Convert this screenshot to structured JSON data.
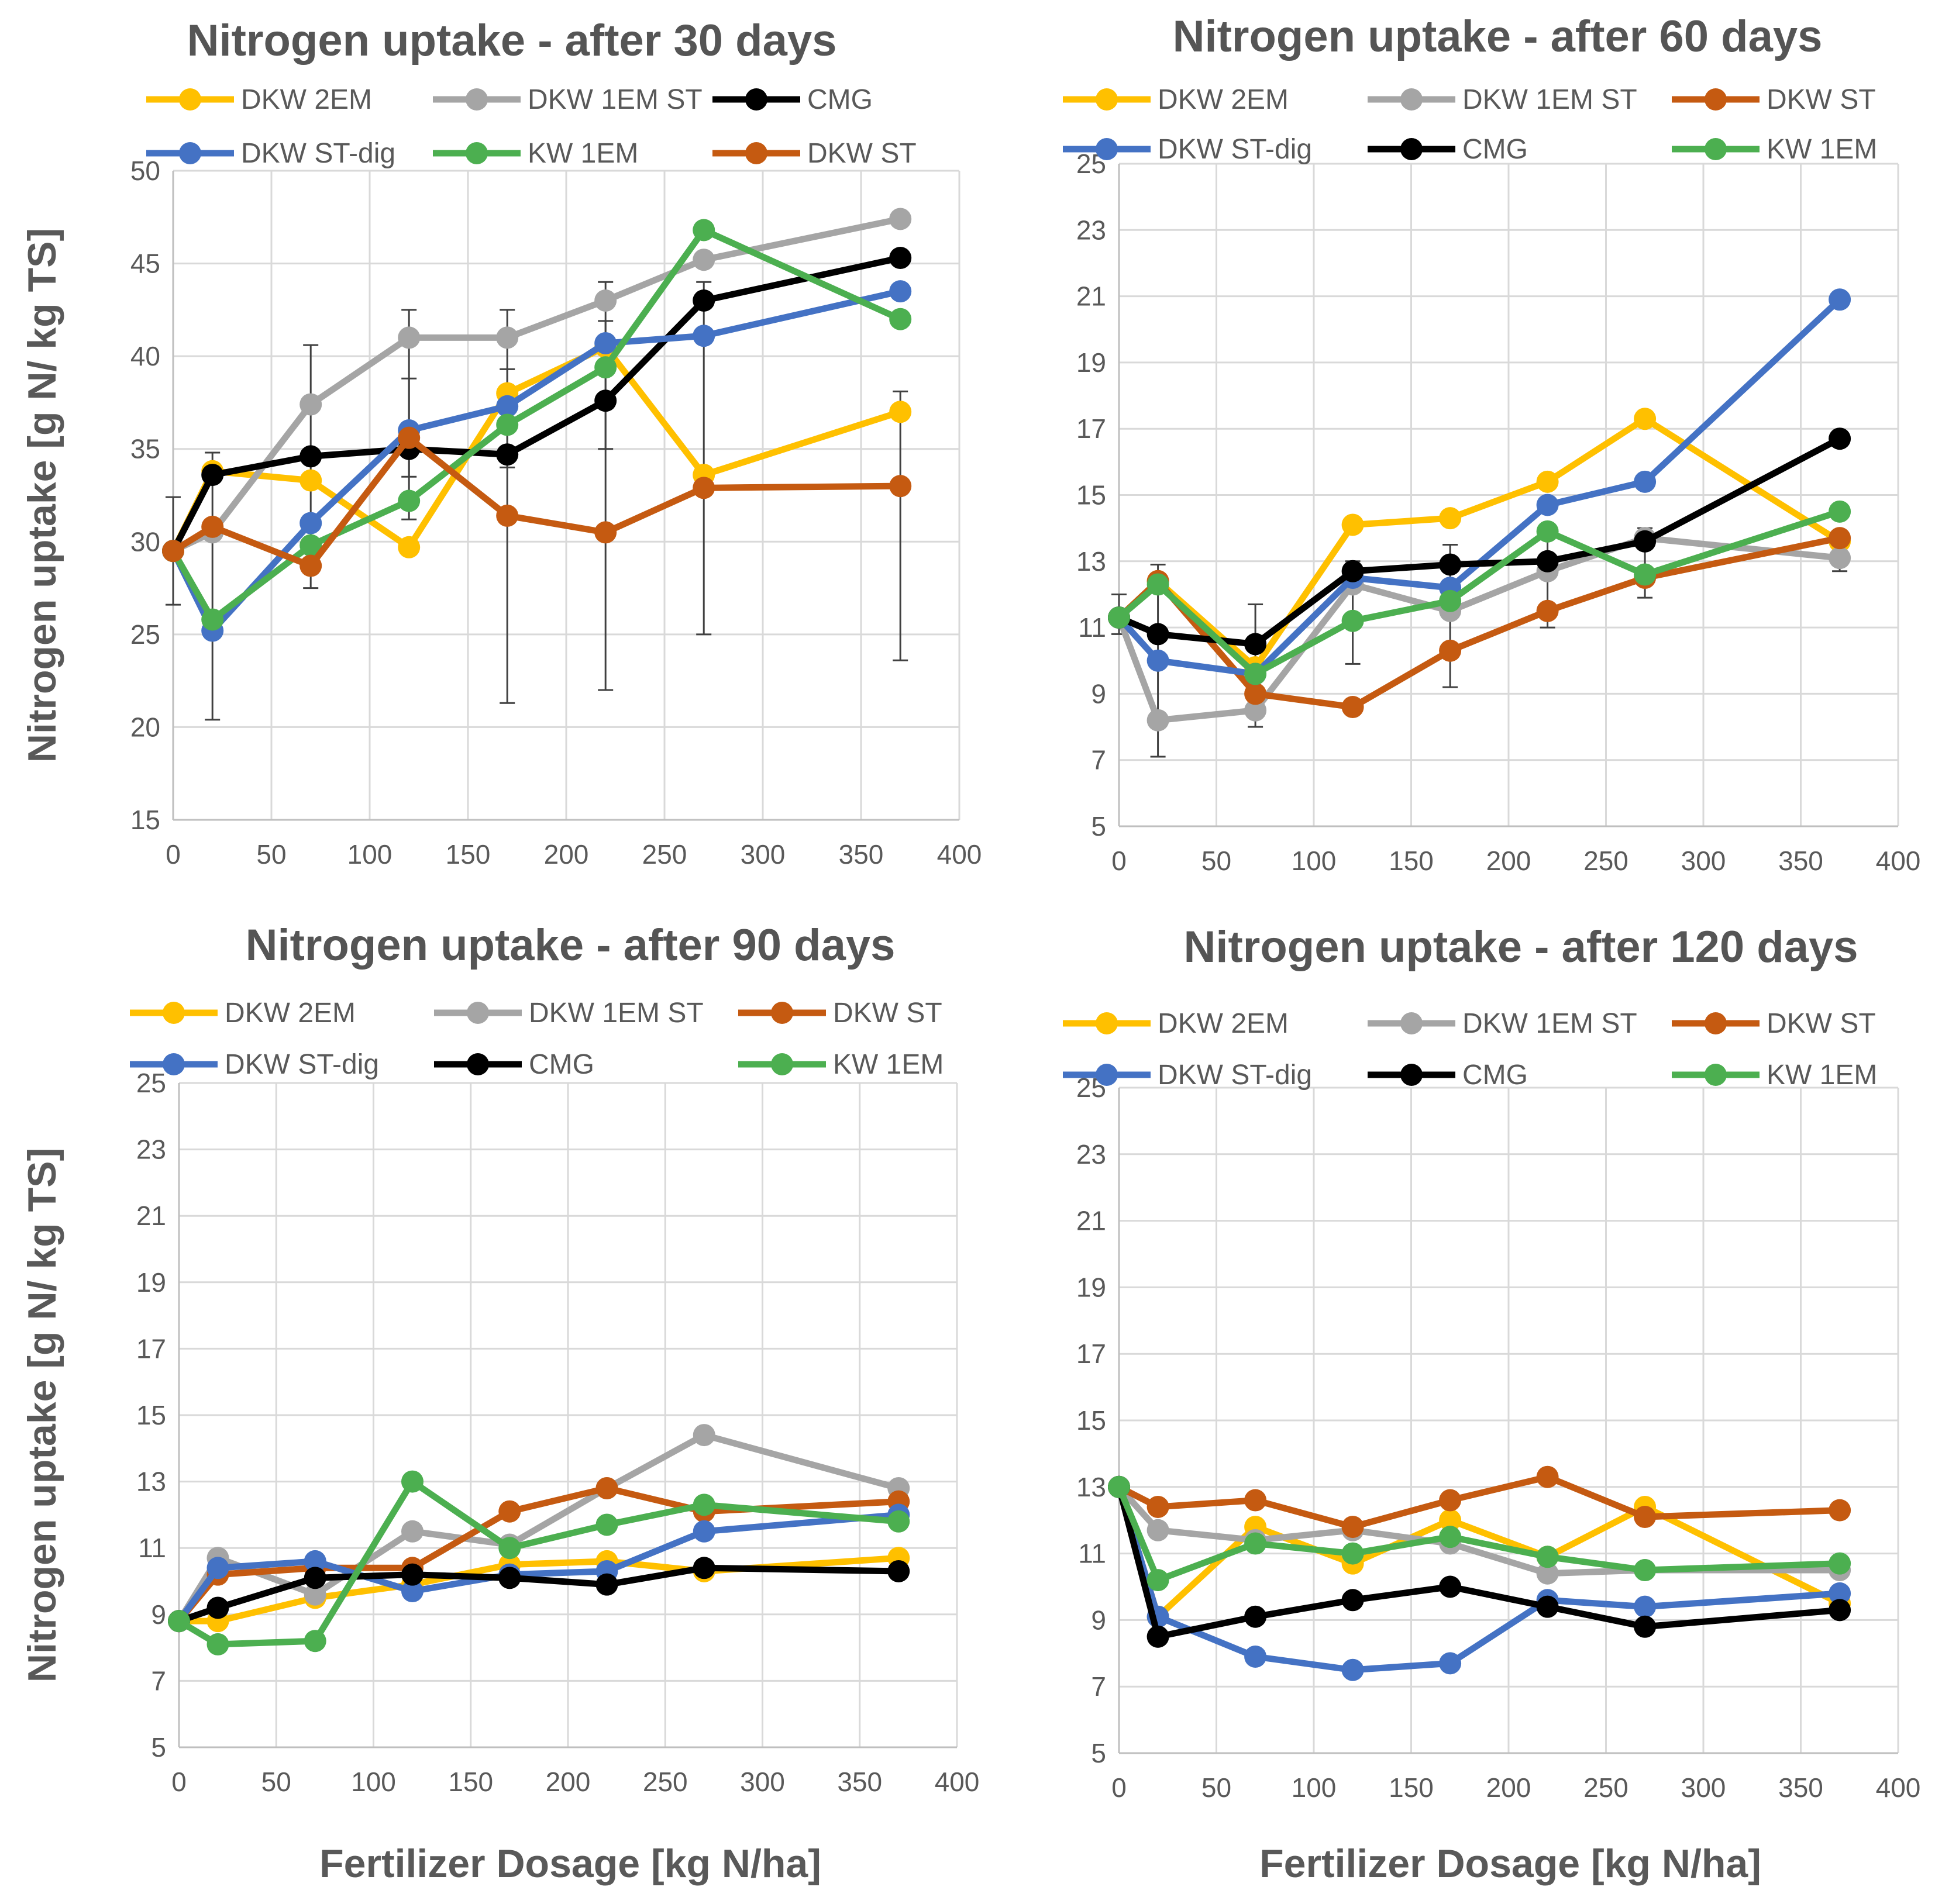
{
  "figure": {
    "xlabel_left": "Fertilizer Dosage [kg N/ha]",
    "xlabel_right": "Fertilizer Dosage [kg N/ha]"
  },
  "colors": {
    "DKW 2EM": "#FFC000",
    "DKW 1EM ST": "#A5A5A5",
    "CMG": "#000000",
    "DKW ST-dig": "#4472C4",
    "KW 1EM": "#4CAF50",
    "DKW ST": "#C55A11"
  },
  "chart_data": [
    {
      "type": "line",
      "title": "Nitrogen uptake  - after 30 days",
      "xlabel": "",
      "ylabel": "Nitrogen uptake [g N/ kg TS]",
      "xlim": [
        0,
        400
      ],
      "ylim": [
        15,
        50
      ],
      "xticks": [
        0,
        50,
        100,
        150,
        200,
        250,
        300,
        350,
        400
      ],
      "yticks": [
        15,
        20,
        25,
        30,
        35,
        40,
        45,
        50
      ],
      "legend": [
        "DKW 2EM",
        "DKW 1EM ST",
        "CMG",
        "DKW ST-dig",
        "KW 1EM",
        "DKW ST"
      ],
      "x": [
        0,
        20,
        70,
        120,
        170,
        220,
        270,
        370
      ],
      "series": [
        {
          "name": "DKW 2EM",
          "values": [
            29.5,
            33.8,
            33.3,
            29.7,
            38.0,
            40.5,
            33.6,
            37.0
          ]
        },
        {
          "name": "DKW 1EM ST",
          "values": [
            29.5,
            30.5,
            37.4,
            41.0,
            41.0,
            43.0,
            45.2,
            47.4
          ]
        },
        {
          "name": "CMG",
          "values": [
            29.5,
            33.6,
            34.6,
            35.0,
            34.7,
            37.6,
            43.0,
            45.3
          ]
        },
        {
          "name": "DKW ST-dig",
          "values": [
            29.5,
            25.2,
            31.0,
            36.0,
            37.3,
            40.7,
            41.1,
            43.5
          ]
        },
        {
          "name": "KW 1EM",
          "values": [
            29.5,
            25.8,
            29.8,
            32.2,
            36.3,
            39.4,
            46.8,
            42.0
          ]
        },
        {
          "name": "DKW ST",
          "values": [
            29.5,
            30.8,
            28.7,
            35.6,
            31.4,
            30.5,
            32.9,
            33.0
          ]
        }
      ],
      "error_bars": [
        {
          "x": 0,
          "low": 26.6,
          "high": 32.4
        },
        {
          "x": 20,
          "low": 20.4,
          "high": 34.8
        },
        {
          "x": 70,
          "low": 27.5,
          "high": 40.6
        },
        {
          "x": 120,
          "low": 33.5,
          "high": 42.5
        },
        {
          "x": 120,
          "low": 31.2,
          "high": 38.8
        },
        {
          "x": 170,
          "low": 21.3,
          "high": 42.5
        },
        {
          "x": 170,
          "low": 34.0,
          "high": 39.3
        },
        {
          "x": 220,
          "low": 22.0,
          "high": 41.9
        },
        {
          "x": 220,
          "low": 35.0,
          "high": 44.0
        },
        {
          "x": 270,
          "low": 25.0,
          "high": 44.0
        },
        {
          "x": 370,
          "low": 23.6,
          "high": 38.1
        }
      ]
    },
    {
      "type": "line",
      "title": "Nitrogen uptake  - after 60 days",
      "xlabel": "",
      "ylabel": "",
      "xlim": [
        0,
        400
      ],
      "ylim": [
        5,
        25
      ],
      "xticks": [
        0,
        50,
        100,
        150,
        200,
        250,
        300,
        350,
        400
      ],
      "yticks": [
        5,
        7,
        9,
        11,
        13,
        15,
        17,
        19,
        21,
        23,
        25
      ],
      "legend": [
        "DKW 2EM",
        "DKW 1EM ST",
        "DKW ST",
        "DKW ST-dig",
        "CMG",
        "KW 1EM"
      ],
      "x": [
        0,
        20,
        70,
        120,
        170,
        220,
        270,
        370
      ],
      "series": [
        {
          "name": "DKW 2EM",
          "values": [
            11.3,
            12.4,
            9.8,
            14.1,
            14.3,
            15.4,
            17.3,
            13.6
          ]
        },
        {
          "name": "DKW 1EM ST",
          "values": [
            11.3,
            8.2,
            8.5,
            12.3,
            11.5,
            12.7,
            13.7,
            13.1
          ]
        },
        {
          "name": "DKW ST",
          "values": [
            11.3,
            12.4,
            9.0,
            8.6,
            10.3,
            11.5,
            12.5,
            13.7
          ]
        },
        {
          "name": "DKW ST-dig",
          "values": [
            11.3,
            10.0,
            9.6,
            12.5,
            12.2,
            14.7,
            15.4,
            20.9
          ]
        },
        {
          "name": "CMG",
          "values": [
            11.3,
            10.8,
            10.5,
            12.7,
            12.9,
            13.0,
            13.6,
            16.7
          ]
        },
        {
          "name": "KW 1EM",
          "values": [
            11.3,
            12.3,
            9.6,
            11.2,
            11.8,
            13.9,
            12.6,
            14.5
          ]
        }
      ],
      "error_bars": [
        {
          "x": 0,
          "low": 10.8,
          "high": 12.0
        },
        {
          "x": 20,
          "low": 7.1,
          "high": 12.9
        },
        {
          "x": 70,
          "low": 8.0,
          "high": 11.7
        },
        {
          "x": 120,
          "low": 9.9,
          "high": 13.0
        },
        {
          "x": 170,
          "low": 9.2,
          "high": 13.5
        },
        {
          "x": 220,
          "low": 11.0,
          "high": 14.0
        },
        {
          "x": 270,
          "low": 11.9,
          "high": 14.0
        },
        {
          "x": 370,
          "low": 12.7,
          "high": 13.5
        }
      ]
    },
    {
      "type": "line",
      "title": "Nitrogen uptake  - after 90 days",
      "xlabel": "",
      "ylabel": "Nitrogen uptake [g N/ kg TS]",
      "xlim": [
        0,
        400
      ],
      "ylim": [
        5,
        25
      ],
      "xticks": [
        0,
        50,
        100,
        150,
        200,
        250,
        300,
        350,
        400
      ],
      "yticks": [
        5,
        7,
        9,
        11,
        13,
        15,
        17,
        19,
        21,
        23,
        25
      ],
      "legend": [
        "DKW 2EM",
        "DKW 1EM ST",
        "DKW ST",
        "DKW ST-dig",
        "CMG",
        "KW 1EM"
      ],
      "x": [
        0,
        20,
        70,
        120,
        170,
        220,
        270,
        370
      ],
      "series": [
        {
          "name": "DKW 2EM",
          "values": [
            8.8,
            8.8,
            9.5,
            9.9,
            10.5,
            10.6,
            10.3,
            10.7
          ]
        },
        {
          "name": "DKW 1EM ST",
          "values": [
            8.8,
            10.7,
            9.6,
            11.5,
            11.1,
            12.8,
            14.4,
            12.8
          ]
        },
        {
          "name": "DKW ST",
          "values": [
            8.8,
            10.2,
            10.4,
            10.4,
            12.1,
            12.8,
            12.1,
            12.4
          ]
        },
        {
          "name": "DKW ST-dig",
          "values": [
            8.8,
            10.4,
            10.6,
            9.7,
            10.2,
            10.3,
            11.5,
            12.0
          ]
        },
        {
          "name": "CMG",
          "values": [
            8.8,
            9.2,
            10.1,
            10.2,
            10.1,
            9.9,
            10.4,
            10.3
          ]
        },
        {
          "name": "KW 1EM",
          "values": [
            8.8,
            8.1,
            8.2,
            13.0,
            11.0,
            11.7,
            12.3,
            11.8
          ]
        }
      ]
    },
    {
      "type": "line",
      "title": "Nitrogen uptake  - after 120 days",
      "xlabel": "",
      "ylabel": "",
      "xlim": [
        0,
        400
      ],
      "ylim": [
        5,
        25
      ],
      "xticks": [
        0,
        50,
        100,
        150,
        200,
        250,
        300,
        350,
        400
      ],
      "yticks": [
        5,
        7,
        9,
        11,
        13,
        15,
        17,
        19,
        21,
        23,
        25
      ],
      "legend": [
        "DKW 2EM",
        "DKW 1EM ST",
        "DKW ST",
        "DKW ST-dig",
        "CMG",
        "KW 1EM"
      ],
      "x": [
        0,
        20,
        70,
        120,
        170,
        220,
        270,
        370
      ],
      "series": [
        {
          "name": "DKW 2EM",
          "values": [
            13.0,
            9.1,
            11.8,
            10.7,
            12.0,
            10.9,
            12.4,
            9.5
          ]
        },
        {
          "name": "DKW 1EM ST",
          "values": [
            13.0,
            11.7,
            11.4,
            11.7,
            11.3,
            10.4,
            10.5,
            10.5
          ]
        },
        {
          "name": "DKW ST",
          "values": [
            13.0,
            12.4,
            12.6,
            11.8,
            12.6,
            13.3,
            12.1,
            12.3
          ]
        },
        {
          "name": "DKW ST-dig",
          "values": [
            13.0,
            9.1,
            7.9,
            7.5,
            7.7,
            9.6,
            9.4,
            9.8
          ]
        },
        {
          "name": "CMG",
          "values": [
            13.0,
            8.5,
            9.1,
            9.6,
            10.0,
            9.4,
            8.8,
            9.3
          ]
        },
        {
          "name": "KW 1EM",
          "values": [
            13.0,
            10.2,
            11.3,
            11.0,
            11.5,
            10.9,
            10.5,
            10.7
          ]
        }
      ]
    }
  ]
}
